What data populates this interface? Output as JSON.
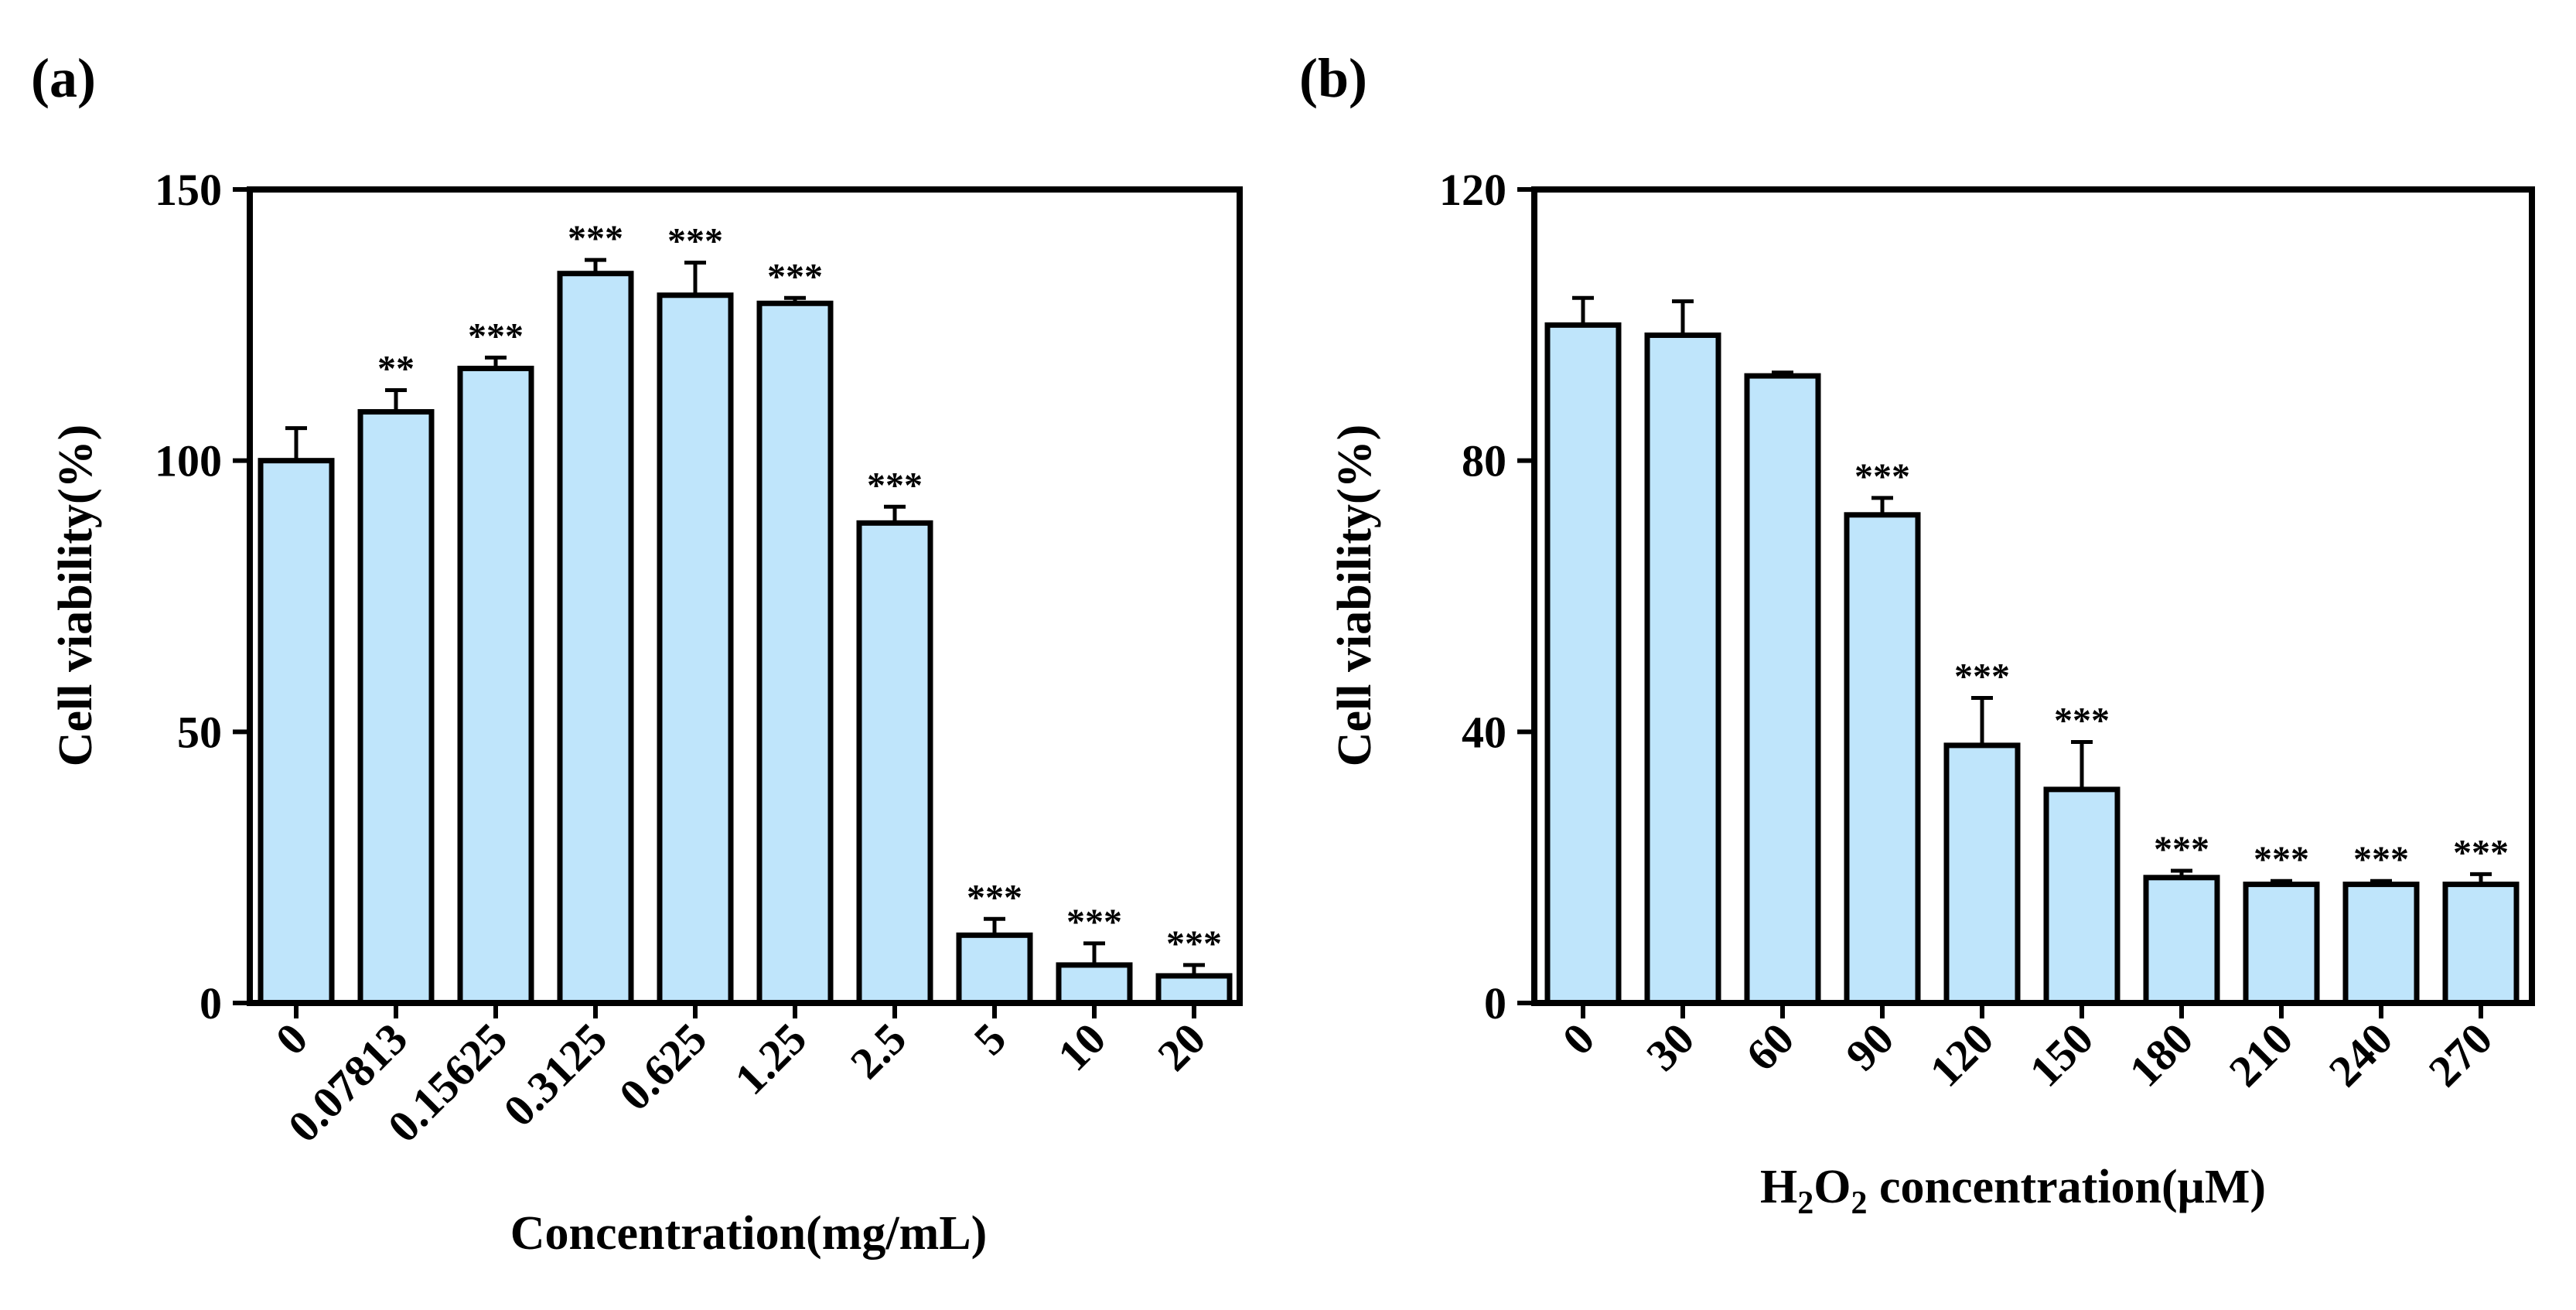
{
  "chart_data": [
    {
      "type": "bar",
      "panel_label": "(a)",
      "xlabel": "Concentration(mg/mL)",
      "ylabel": "Cell viability(%)",
      "ylim": [
        0,
        150
      ],
      "yticks": [
        0,
        50,
        100,
        150
      ],
      "categories": [
        "0",
        "0.07813",
        "0.15625",
        "0.3125",
        "0.625",
        "1.25",
        "2.5",
        "5",
        "10",
        "20"
      ],
      "values": [
        100,
        109,
        117,
        134.5,
        130.5,
        129,
        88.5,
        12.5,
        7,
        5
      ],
      "errors": [
        6,
        4,
        2,
        2.5,
        6,
        1,
        3,
        3,
        4,
        2
      ],
      "significance": [
        "",
        "**",
        "***",
        "***",
        "***",
        "***",
        "***",
        "***",
        "***",
        "***"
      ],
      "bar_color": "#bfe5fb"
    },
    {
      "type": "bar",
      "panel_label": "(b)",
      "xlabel_parts": [
        "H",
        "2",
        "O",
        "2",
        " concentration(μM)"
      ],
      "ylabel": "Cell viability(%)",
      "ylim": [
        0,
        120
      ],
      "yticks": [
        0,
        40,
        80,
        120
      ],
      "categories": [
        "0",
        "30",
        "60",
        "90",
        "120",
        "150",
        "180",
        "210",
        "240",
        "270"
      ],
      "values": [
        100,
        98.5,
        92.5,
        72,
        38,
        31.5,
        18.5,
        17.5,
        17.5,
        17.5
      ],
      "errors": [
        4,
        5,
        0.5,
        2.5,
        7,
        7,
        1,
        0.5,
        0.5,
        1.5
      ],
      "significance": [
        "",
        "",
        "",
        "***",
        "***",
        "***",
        "***",
        "***",
        "***",
        "***"
      ],
      "bar_color": "#bfe5fb"
    }
  ]
}
